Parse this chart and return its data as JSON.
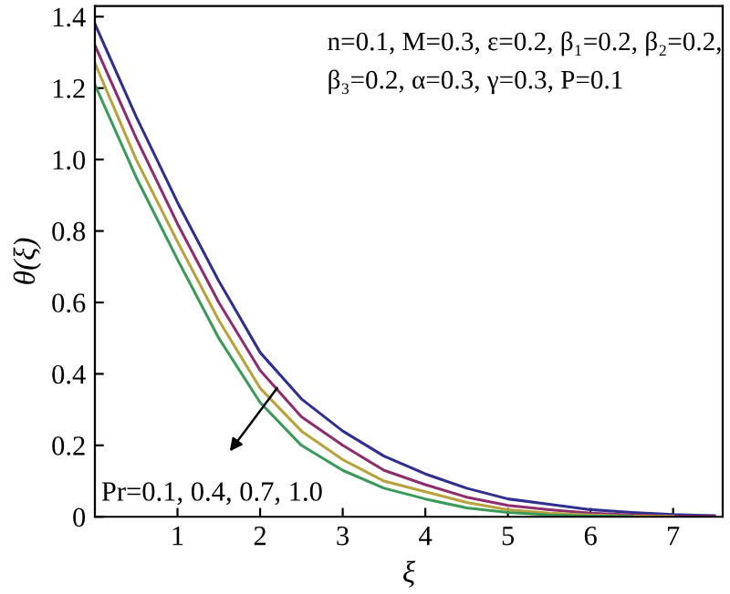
{
  "chart_data": {
    "type": "line",
    "xlabel": "ξ",
    "ylabel": "θ(ξ)",
    "x": [
      0,
      0.5,
      1,
      1.5,
      2,
      2.5,
      3,
      3.5,
      4,
      4.5,
      5,
      5.5,
      6,
      6.5,
      7,
      7.5
    ],
    "series": [
      {
        "color": "#2e2f8f",
        "values": [
          1.38,
          1.12,
          0.88,
          0.66,
          0.46,
          0.33,
          0.24,
          0.17,
          0.12,
          0.08,
          0.05,
          0.035,
          0.02,
          0.012,
          0.006,
          0.003
        ]
      },
      {
        "color": "#8e2d6e",
        "values": [
          1.32,
          1.06,
          0.82,
          0.6,
          0.41,
          0.28,
          0.2,
          0.13,
          0.09,
          0.055,
          0.032,
          0.02,
          0.01,
          0.005,
          0.002,
          0.001
        ]
      },
      {
        "color": "#b8a23c",
        "values": [
          1.27,
          1.0,
          0.77,
          0.55,
          0.36,
          0.24,
          0.16,
          0.1,
          0.07,
          0.04,
          0.02,
          0.01,
          0.005,
          0.002,
          0.001,
          null
        ]
      },
      {
        "color": "#3a9a5a",
        "values": [
          1.21,
          0.95,
          0.72,
          0.5,
          0.32,
          0.2,
          0.13,
          0.08,
          0.05,
          0.025,
          0.012,
          0.005,
          0.002,
          0.001,
          null,
          null
        ]
      }
    ],
    "xlim": [
      0,
      7.6
    ],
    "ylim": [
      0,
      1.43
    ],
    "xticks": [
      1,
      2,
      3,
      4,
      5,
      6,
      7
    ],
    "yticks": [
      0,
      0.2,
      0.4,
      0.6,
      0.8,
      {
        "value": 1.0,
        "label": "1.0"
      },
      1.2,
      1.4
    ],
    "grid": false,
    "legend": false,
    "marker": "none",
    "line_style": "solid",
    "annotations": [
      "n=0.1, M=0.3, ε=0.2, β₁=0.2, β₂=0.2,",
      "β₃=0.2, α=0.3, γ=0.3, P=0.1",
      "Pr=0.1, 0.4, 0.7, 1.0"
    ]
  }
}
